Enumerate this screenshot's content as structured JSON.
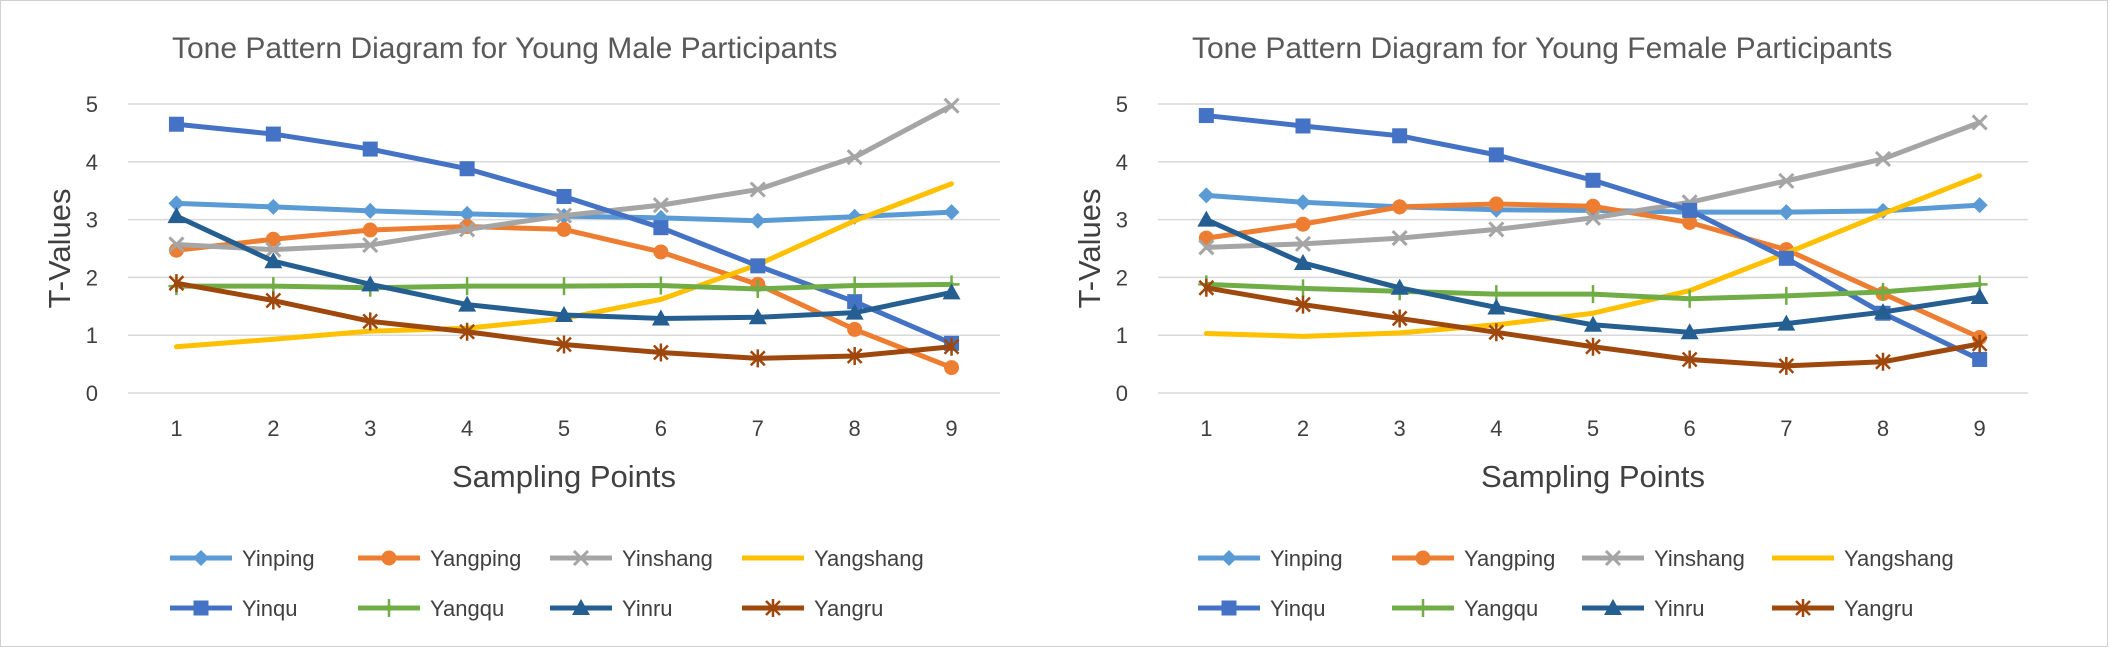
{
  "chart_data": [
    {
      "type": "line",
      "title": "Tone Pattern Diagram for Young Male  Participants",
      "xlabel": "Sampling Points",
      "ylabel": "T-Values",
      "ylim": [
        0,
        5
      ],
      "y_ticks": [
        "0",
        "1",
        "2",
        "3",
        "4",
        "5"
      ],
      "categories": [
        "1",
        "2",
        "3",
        "4",
        "5",
        "6",
        "7",
        "8",
        "9"
      ],
      "grid": "horizontal",
      "legend_position": "bottom",
      "series": [
        {
          "name": "Yinping",
          "color": "#5B9BD5",
          "marker": "diamond",
          "values": [
            3.28,
            3.22,
            3.15,
            3.1,
            3.06,
            3.03,
            2.98,
            3.05,
            3.13
          ]
        },
        {
          "name": "Yangping",
          "color": "#ED7D31",
          "marker": "circle",
          "values": [
            2.47,
            2.66,
            2.82,
            2.88,
            2.83,
            2.44,
            1.88,
            1.1,
            0.44
          ]
        },
        {
          "name": "Yinshang",
          "color": "#A5A5A5",
          "marker": "x",
          "values": [
            2.57,
            2.48,
            2.56,
            2.83,
            3.07,
            3.25,
            3.52,
            4.08,
            4.97
          ]
        },
        {
          "name": "Yangshang",
          "color": "#FFC000",
          "marker": "none",
          "values": [
            0.8,
            0.93,
            1.07,
            1.12,
            1.29,
            1.62,
            2.22,
            2.98,
            3.62
          ]
        },
        {
          "name": "Yinqu",
          "color": "#4472C4",
          "marker": "square",
          "values": [
            4.65,
            4.48,
            4.22,
            3.88,
            3.4,
            2.86,
            2.2,
            1.58,
            0.86
          ]
        },
        {
          "name": "Yangqu",
          "color": "#70AD47",
          "marker": "plus",
          "values": [
            1.85,
            1.85,
            1.82,
            1.85,
            1.85,
            1.86,
            1.8,
            1.86,
            1.88
          ]
        },
        {
          "name": "Yinru",
          "color": "#255E91",
          "marker": "triangle",
          "values": [
            3.06,
            2.28,
            1.88,
            1.53,
            1.35,
            1.29,
            1.31,
            1.39,
            1.74
          ]
        },
        {
          "name": "Yangru",
          "color": "#9E480E",
          "marker": "star",
          "values": [
            1.9,
            1.6,
            1.24,
            1.06,
            0.84,
            0.7,
            0.6,
            0.64,
            0.8
          ]
        }
      ]
    },
    {
      "type": "line",
      "title": "Tone Pattern Diagram for Young Female Participants",
      "xlabel": "Sampling Points",
      "ylabel": "T-Values",
      "ylim": [
        0,
        5
      ],
      "y_ticks": [
        "0",
        "1",
        "2",
        "3",
        "4",
        "5"
      ],
      "categories": [
        "1",
        "2",
        "3",
        "4",
        "5",
        "6",
        "7",
        "8",
        "9"
      ],
      "grid": "horizontal",
      "legend_position": "bottom",
      "series": [
        {
          "name": "Yinping",
          "color": "#5B9BD5",
          "marker": "diamond",
          "values": [
            3.42,
            3.3,
            3.22,
            3.17,
            3.16,
            3.13,
            3.13,
            3.15,
            3.25
          ]
        },
        {
          "name": "Yangping",
          "color": "#ED7D31",
          "marker": "circle",
          "values": [
            2.68,
            2.92,
            3.22,
            3.27,
            3.23,
            2.95,
            2.48,
            1.72,
            0.96
          ]
        },
        {
          "name": "Yinshang",
          "color": "#A5A5A5",
          "marker": "x",
          "values": [
            2.52,
            2.58,
            2.68,
            2.83,
            3.03,
            3.3,
            3.67,
            4.05,
            4.68
          ]
        },
        {
          "name": "Yangshang",
          "color": "#FFC000",
          "marker": "none",
          "values": [
            1.03,
            0.98,
            1.04,
            1.18,
            1.38,
            1.77,
            2.42,
            3.1,
            3.76
          ]
        },
        {
          "name": "Yinqu",
          "color": "#4472C4",
          "marker": "square",
          "values": [
            4.8,
            4.62,
            4.45,
            4.12,
            3.68,
            3.16,
            2.33,
            1.38,
            0.58
          ]
        },
        {
          "name": "Yangqu",
          "color": "#70AD47",
          "marker": "plus",
          "values": [
            1.88,
            1.81,
            1.76,
            1.71,
            1.71,
            1.63,
            1.68,
            1.75,
            1.88
          ]
        },
        {
          "name": "Yinru",
          "color": "#255E91",
          "marker": "triangle",
          "values": [
            3.0,
            2.25,
            1.82,
            1.48,
            1.18,
            1.05,
            1.2,
            1.4,
            1.66
          ]
        },
        {
          "name": "Yangru",
          "color": "#9E480E",
          "marker": "star",
          "values": [
            1.82,
            1.53,
            1.29,
            1.05,
            0.8,
            0.58,
            0.47,
            0.54,
            0.85
          ]
        }
      ]
    }
  ]
}
